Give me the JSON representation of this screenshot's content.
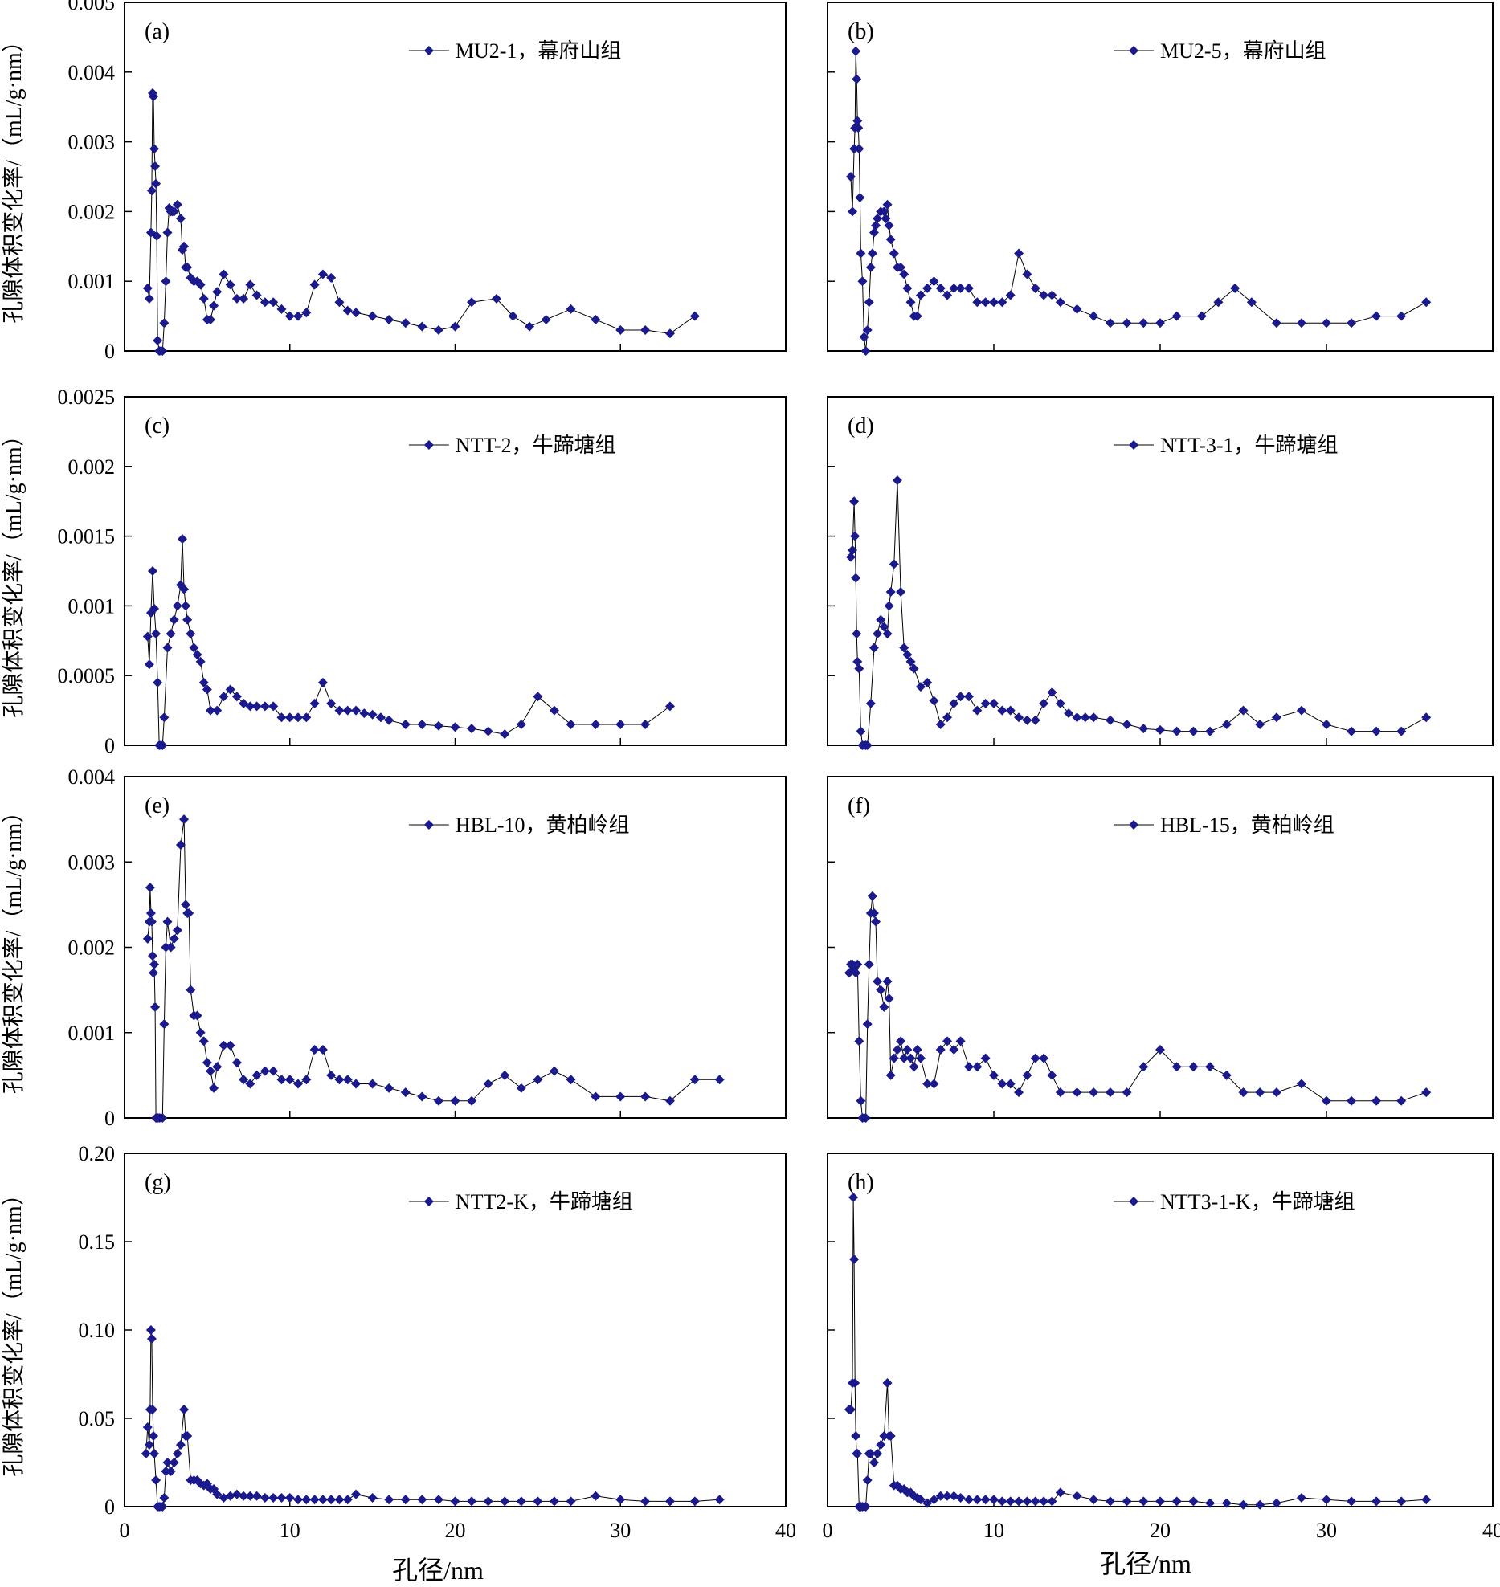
{
  "figure": {
    "xlabel": "孔径/nm",
    "ylabel": "孔隙体积变化率/（mL/g·nm）",
    "x_ticks": [
      "0",
      "10",
      "20",
      "30",
      "40"
    ],
    "marker_color": "#1a1a8c"
  },
  "chart_data": [
    {
      "type": "line",
      "id": "a",
      "panel_label": "(a)",
      "legend": "MU2-1，幕府山组",
      "ylim": [
        0,
        0.005
      ],
      "y_ticks": [
        "0",
        "0.001",
        "0.002",
        "0.003",
        "0.004",
        "0.005"
      ],
      "show_y_tick_labels": true,
      "x": [
        1.4,
        1.5,
        1.6,
        1.65,
        1.7,
        1.75,
        1.8,
        1.85,
        1.9,
        1.95,
        2.0,
        2.1,
        2.2,
        2.3,
        2.4,
        2.5,
        2.6,
        2.7,
        2.8,
        2.9,
        3.0,
        3.2,
        3.4,
        3.5,
        3.6,
        3.7,
        3.8,
        4.0,
        4.2,
        4.4,
        4.6,
        4.8,
        5.0,
        5.2,
        5.4,
        5.6,
        6.0,
        6.4,
        6.8,
        7.2,
        7.6,
        8.0,
        8.5,
        9.0,
        9.5,
        10.0,
        10.5,
        11.0,
        11.5,
        12.0,
        12.5,
        13.0,
        13.5,
        14.0,
        15.0,
        16.0,
        17.0,
        18.0,
        19.0,
        20.0,
        21.0,
        22.5,
        23.5,
        24.5,
        25.5,
        27.0,
        28.5,
        30.0,
        31.5,
        33.0,
        34.5
      ],
      "y": [
        0.0009,
        0.00075,
        0.0017,
        0.0023,
        0.0037,
        0.00365,
        0.0029,
        0.00265,
        0.0024,
        0.00165,
        0.00015,
        0.0,
        0.0,
        0.0,
        0.0004,
        0.001,
        0.0017,
        0.00205,
        0.002,
        0.002,
        0.002,
        0.0021,
        0.0019,
        0.00145,
        0.0015,
        0.0012,
        0.0012,
        0.00105,
        0.001,
        0.001,
        0.00095,
        0.00075,
        0.00045,
        0.00045,
        0.00065,
        0.00085,
        0.0011,
        0.00095,
        0.00075,
        0.00075,
        0.00095,
        0.0008,
        0.0007,
        0.0007,
        0.0006,
        0.0005,
        0.0005,
        0.00055,
        0.00095,
        0.0011,
        0.00105,
        0.0007,
        0.00058,
        0.00055,
        0.0005,
        0.00045,
        0.0004,
        0.00035,
        0.0003,
        0.00035,
        0.0007,
        0.00075,
        0.0005,
        0.00035,
        0.00045,
        0.0006,
        0.00045,
        0.0003,
        0.0003,
        0.00025,
        0.0005
      ]
    },
    {
      "type": "line",
      "id": "b",
      "panel_label": "(b)",
      "legend": "MU2-5，幕府山组",
      "ylim": [
        0,
        0.005
      ],
      "y_ticks": [
        "",
        "",
        "",
        "",
        "",
        ""
      ],
      "show_y_tick_labels": false,
      "x": [
        1.4,
        1.5,
        1.6,
        1.65,
        1.7,
        1.75,
        1.8,
        1.85,
        1.9,
        1.95,
        2.0,
        2.1,
        2.2,
        2.3,
        2.4,
        2.5,
        2.6,
        2.7,
        2.8,
        2.9,
        3.0,
        3.2,
        3.4,
        3.5,
        3.6,
        3.7,
        3.8,
        4.0,
        4.2,
        4.4,
        4.6,
        4.8,
        5.0,
        5.2,
        5.4,
        5.6,
        6.0,
        6.4,
        6.8,
        7.2,
        7.6,
        8.0,
        8.5,
        9.0,
        9.5,
        10.0,
        10.5,
        11.0,
        11.5,
        12.0,
        12.5,
        13.0,
        13.5,
        14.0,
        15.0,
        16.0,
        17.0,
        18.0,
        19.0,
        20.0,
        21.0,
        22.5,
        23.5,
        24.5,
        25.5,
        27.0,
        28.5,
        30.0,
        31.5,
        33.0,
        34.5,
        36.0
      ],
      "y": [
        0.0025,
        0.002,
        0.0029,
        0.0032,
        0.0043,
        0.0039,
        0.0033,
        0.0032,
        0.0029,
        0.0022,
        0.0014,
        0.001,
        0.0002,
        0.0,
        0.0003,
        0.0007,
        0.0012,
        0.0014,
        0.0017,
        0.0018,
        0.0019,
        0.002,
        0.002,
        0.0019,
        0.0021,
        0.0018,
        0.0016,
        0.0014,
        0.0012,
        0.0012,
        0.0011,
        0.0009,
        0.0007,
        0.0005,
        0.0005,
        0.0008,
        0.0009,
        0.001,
        0.0009,
        0.0008,
        0.0009,
        0.0009,
        0.0009,
        0.0007,
        0.0007,
        0.0007,
        0.0007,
        0.0008,
        0.0014,
        0.0011,
        0.0009,
        0.0008,
        0.0008,
        0.0007,
        0.0006,
        0.0005,
        0.0004,
        0.0004,
        0.0004,
        0.0004,
        0.0005,
        0.0005,
        0.0007,
        0.0009,
        0.0007,
        0.0004,
        0.0004,
        0.0004,
        0.0004,
        0.0005,
        0.0005,
        0.0007
      ]
    },
    {
      "type": "line",
      "id": "c",
      "panel_label": "(c)",
      "legend": "NTT-2，牛蹄塘组",
      "ylim": [
        0,
        0.0025
      ],
      "y_ticks": [
        "0",
        "0.0005",
        "0.001",
        "0.0015",
        "0.002",
        "0.0025"
      ],
      "show_y_tick_labels": true,
      "x": [
        1.4,
        1.5,
        1.6,
        1.7,
        1.8,
        1.9,
        2.0,
        2.1,
        2.2,
        2.3,
        2.4,
        2.6,
        2.8,
        3.0,
        3.2,
        3.4,
        3.5,
        3.6,
        3.7,
        3.8,
        4.0,
        4.2,
        4.4,
        4.6,
        4.8,
        5.0,
        5.2,
        5.6,
        6.0,
        6.4,
        6.8,
        7.2,
        7.6,
        8.0,
        8.5,
        9.0,
        9.5,
        10.0,
        10.5,
        11.0,
        11.5,
        12.0,
        12.5,
        13.0,
        13.5,
        14.0,
        14.5,
        15.0,
        15.5,
        16.0,
        17.0,
        18.0,
        19.0,
        20.0,
        21.0,
        22.0,
        23.0,
        24.0,
        25.0,
        26.0,
        27.0,
        28.5,
        30.0,
        31.5,
        33.0
      ],
      "y": [
        0.00078,
        0.00058,
        0.00095,
        0.00125,
        0.00098,
        0.0008,
        0.00045,
        0.0,
        0.0,
        0.0,
        0.0002,
        0.0007,
        0.0008,
        0.0009,
        0.001,
        0.00115,
        0.00148,
        0.00112,
        0.001,
        0.0009,
        0.0008,
        0.0007,
        0.00065,
        0.0006,
        0.00045,
        0.0004,
        0.00025,
        0.00025,
        0.00035,
        0.0004,
        0.00035,
        0.0003,
        0.00028,
        0.00028,
        0.00028,
        0.00028,
        0.0002,
        0.0002,
        0.0002,
        0.0002,
        0.0003,
        0.00045,
        0.0003,
        0.00025,
        0.00025,
        0.00025,
        0.00023,
        0.00022,
        0.0002,
        0.00018,
        0.00015,
        0.00015,
        0.00014,
        0.00013,
        0.00012,
        0.0001,
        8e-05,
        0.00015,
        0.00035,
        0.00025,
        0.00015,
        0.00015,
        0.00015,
        0.00015,
        0.00028
      ]
    },
    {
      "type": "line",
      "id": "d",
      "panel_label": "(d)",
      "legend": "NTT-3-1，牛蹄塘组",
      "ylim": [
        0,
        0.0025
      ],
      "y_ticks": [
        "",
        "",
        "",
        "",
        "",
        ""
      ],
      "show_y_tick_labels": false,
      "x": [
        1.4,
        1.5,
        1.6,
        1.65,
        1.7,
        1.75,
        1.8,
        1.9,
        2.0,
        2.1,
        2.2,
        2.3,
        2.4,
        2.6,
        2.8,
        3.0,
        3.2,
        3.4,
        3.6,
        3.7,
        3.8,
        4.0,
        4.2,
        4.4,
        4.6,
        4.8,
        5.0,
        5.2,
        5.6,
        6.0,
        6.4,
        6.8,
        7.2,
        7.6,
        8.0,
        8.5,
        9.0,
        9.5,
        10.0,
        10.5,
        11.0,
        11.5,
        12.0,
        12.5,
        13.0,
        13.5,
        14.0,
        14.5,
        15.0,
        15.5,
        16.0,
        17.0,
        18.0,
        19.0,
        20.0,
        21.0,
        22.0,
        23.0,
        24.0,
        25.0,
        26.0,
        27.0,
        28.5,
        30.0,
        31.5,
        33.0,
        34.5,
        36.0
      ],
      "y": [
        0.00135,
        0.0014,
        0.00175,
        0.0015,
        0.0012,
        0.0008,
        0.0006,
        0.00055,
        0.0001,
        0.0,
        0.0,
        0.0,
        0.0,
        0.0003,
        0.0007,
        0.0008,
        0.0009,
        0.00085,
        0.0008,
        0.001,
        0.0011,
        0.0013,
        0.0019,
        0.0011,
        0.0007,
        0.00065,
        0.0006,
        0.00055,
        0.00042,
        0.00045,
        0.00032,
        0.00015,
        0.0002,
        0.0003,
        0.00035,
        0.00035,
        0.00025,
        0.0003,
        0.0003,
        0.00025,
        0.00025,
        0.0002,
        0.00018,
        0.00018,
        0.0003,
        0.00038,
        0.0003,
        0.00023,
        0.0002,
        0.0002,
        0.0002,
        0.00018,
        0.00015,
        0.00012,
        0.00011,
        0.0001,
        0.0001,
        0.0001,
        0.00015,
        0.00025,
        0.00015,
        0.0002,
        0.00025,
        0.00015,
        0.0001,
        0.0001,
        0.0001,
        0.0002
      ]
    },
    {
      "type": "line",
      "id": "e",
      "panel_label": "(e)",
      "legend": "HBL-10，黄柏岭组",
      "ylim": [
        0,
        0.004
      ],
      "y_ticks": [
        "0",
        "0.001",
        "0.002",
        "0.003",
        "0.004"
      ],
      "show_y_tick_labels": true,
      "x": [
        1.4,
        1.5,
        1.55,
        1.6,
        1.65,
        1.7,
        1.75,
        1.8,
        1.85,
        1.9,
        1.95,
        2.0,
        2.1,
        2.2,
        2.3,
        2.4,
        2.5,
        2.6,
        2.8,
        3.0,
        3.2,
        3.4,
        3.6,
        3.7,
        3.8,
        3.9,
        4.0,
        4.2,
        4.4,
        4.6,
        4.8,
        5.0,
        5.2,
        5.4,
        5.6,
        6.0,
        6.4,
        6.8,
        7.2,
        7.6,
        8.0,
        8.5,
        9.0,
        9.5,
        10.0,
        10.5,
        11.0,
        11.5,
        12.0,
        12.5,
        13.0,
        13.5,
        14.0,
        15.0,
        16.0,
        17.0,
        18.0,
        19.0,
        20.0,
        21.0,
        22.0,
        23.0,
        24.0,
        25.0,
        26.0,
        27.0,
        28.5,
        30.0,
        31.5,
        33.0,
        34.5,
        36.0
      ],
      "y": [
        0.0021,
        0.0023,
        0.0027,
        0.0024,
        0.0023,
        0.0019,
        0.0017,
        0.0018,
        0.0013,
        0.0,
        0.0,
        0.0,
        0.0,
        0.0,
        0.0,
        0.0011,
        0.002,
        0.0023,
        0.002,
        0.0021,
        0.0022,
        0.0032,
        0.0035,
        0.0025,
        0.0024,
        0.0024,
        0.0015,
        0.0012,
        0.0012,
        0.001,
        0.0009,
        0.00065,
        0.00055,
        0.00035,
        0.0006,
        0.00085,
        0.00085,
        0.00065,
        0.00045,
        0.0004,
        0.0005,
        0.00055,
        0.00055,
        0.00045,
        0.00045,
        0.0004,
        0.00045,
        0.0008,
        0.0008,
        0.0005,
        0.00045,
        0.00045,
        0.0004,
        0.0004,
        0.00035,
        0.0003,
        0.00025,
        0.0002,
        0.0002,
        0.0002,
        0.0004,
        0.0005,
        0.00035,
        0.00045,
        0.00055,
        0.00045,
        0.00025,
        0.00025,
        0.00025,
        0.0002,
        0.00045,
        0.00045
      ]
    },
    {
      "type": "line",
      "id": "f",
      "panel_label": "(f)",
      "legend": "HBL-15，黄柏岭组",
      "ylim": [
        0,
        0.004
      ],
      "y_ticks": [
        "",
        "",
        "",
        "",
        ""
      ],
      "show_y_tick_labels": false,
      "x": [
        1.3,
        1.4,
        1.5,
        1.6,
        1.7,
        1.8,
        1.9,
        2.0,
        2.1,
        2.2,
        2.3,
        2.4,
        2.5,
        2.6,
        2.7,
        2.8,
        2.9,
        3.0,
        3.2,
        3.4,
        3.6,
        3.7,
        3.8,
        4.0,
        4.2,
        4.4,
        4.6,
        4.8,
        5.0,
        5.2,
        5.4,
        5.6,
        6.0,
        6.4,
        6.8,
        7.2,
        7.6,
        8.0,
        8.5,
        9.0,
        9.5,
        10.0,
        10.5,
        11.0,
        11.5,
        12.0,
        12.5,
        13.0,
        13.5,
        14.0,
        15.0,
        16.0,
        17.0,
        18.0,
        19.0,
        20.0,
        21.0,
        22.0,
        23.0,
        24.0,
        25.0,
        26.0,
        27.0,
        28.5,
        30.0,
        31.5,
        33.0,
        34.5,
        36.0
      ],
      "y": [
        0.0017,
        0.0018,
        0.0018,
        0.00175,
        0.0017,
        0.0018,
        0.0009,
        0.0002,
        0.0,
        0.0,
        0.0,
        0.0011,
        0.0018,
        0.0024,
        0.0026,
        0.0024,
        0.0023,
        0.0016,
        0.0015,
        0.0013,
        0.0016,
        0.0014,
        0.0005,
        0.0007,
        0.0008,
        0.0009,
        0.0007,
        0.0008,
        0.0007,
        0.0006,
        0.0008,
        0.0007,
        0.0004,
        0.0004,
        0.0008,
        0.0009,
        0.0008,
        0.0009,
        0.0006,
        0.0006,
        0.0007,
        0.0005,
        0.0004,
        0.0004,
        0.0003,
        0.0005,
        0.0007,
        0.0007,
        0.0005,
        0.0003,
        0.0003,
        0.0003,
        0.0003,
        0.0003,
        0.0006,
        0.0008,
        0.0006,
        0.0006,
        0.0006,
        0.0005,
        0.0003,
        0.0003,
        0.0003,
        0.0004,
        0.0002,
        0.0002,
        0.0002,
        0.0002,
        0.0003
      ]
    },
    {
      "type": "line",
      "id": "g",
      "panel_label": "(g)",
      "legend": "NTT2-K，牛蹄塘组",
      "ylim": [
        0,
        0.2
      ],
      "y_ticks": [
        "0",
        "0.05",
        "0.10",
        "0.15",
        "0.20"
      ],
      "show_y_tick_labels": true,
      "x": [
        1.3,
        1.4,
        1.5,
        1.55,
        1.6,
        1.65,
        1.7,
        1.75,
        1.8,
        1.9,
        2.0,
        2.1,
        2.2,
        2.3,
        2.4,
        2.5,
        2.6,
        2.8,
        3.0,
        3.2,
        3.4,
        3.6,
        3.7,
        3.8,
        4.0,
        4.2,
        4.4,
        4.6,
        4.8,
        5.0,
        5.2,
        5.4,
        5.6,
        6.0,
        6.4,
        6.8,
        7.2,
        7.6,
        8.0,
        8.5,
        9.0,
        9.5,
        10.0,
        10.5,
        11.0,
        11.5,
        12.0,
        12.5,
        13.0,
        13.5,
        14.0,
        15.0,
        16.0,
        17.0,
        18.0,
        19.0,
        20.0,
        21.0,
        22.0,
        23.0,
        24.0,
        25.0,
        26.0,
        27.0,
        28.5,
        30.0,
        31.5,
        33.0,
        34.5,
        36.0
      ],
      "y": [
        0.03,
        0.045,
        0.035,
        0.055,
        0.1,
        0.095,
        0.055,
        0.04,
        0.03,
        0.015,
        0.0,
        0.0,
        0.0,
        0.0,
        0.005,
        0.02,
        0.025,
        0.02,
        0.025,
        0.03,
        0.035,
        0.055,
        0.04,
        0.04,
        0.015,
        0.015,
        0.015,
        0.013,
        0.012,
        0.013,
        0.01,
        0.01,
        0.007,
        0.005,
        0.006,
        0.007,
        0.006,
        0.006,
        0.006,
        0.005,
        0.005,
        0.005,
        0.005,
        0.004,
        0.004,
        0.004,
        0.004,
        0.004,
        0.004,
        0.004,
        0.007,
        0.005,
        0.004,
        0.004,
        0.004,
        0.004,
        0.003,
        0.003,
        0.003,
        0.003,
        0.003,
        0.003,
        0.003,
        0.003,
        0.006,
        0.004,
        0.003,
        0.003,
        0.003,
        0.004
      ]
    },
    {
      "type": "line",
      "id": "h",
      "panel_label": "(h)",
      "legend": "NTT3-1-K，牛蹄塘组",
      "ylim": [
        0,
        0.2
      ],
      "y_ticks": [
        "",
        "",
        "",
        "",
        ""
      ],
      "show_y_tick_labels": false,
      "x": [
        1.3,
        1.4,
        1.5,
        1.55,
        1.6,
        1.65,
        1.7,
        1.75,
        1.8,
        1.9,
        2.0,
        2.1,
        2.2,
        2.3,
        2.4,
        2.5,
        2.6,
        2.8,
        3.0,
        3.2,
        3.4,
        3.6,
        3.7,
        3.8,
        4.0,
        4.2,
        4.4,
        4.6,
        4.8,
        5.0,
        5.2,
        5.4,
        5.6,
        6.0,
        6.4,
        6.8,
        7.2,
        7.6,
        8.0,
        8.5,
        9.0,
        9.5,
        10.0,
        10.5,
        11.0,
        11.5,
        12.0,
        12.5,
        13.0,
        13.5,
        14.0,
        15.0,
        16.0,
        17.0,
        18.0,
        19.0,
        20.0,
        21.0,
        22.0,
        23.0,
        24.0,
        25.0,
        26.0,
        27.0,
        28.5,
        30.0,
        31.5,
        33.0,
        34.5,
        36.0
      ],
      "y": [
        0.055,
        0.055,
        0.07,
        0.175,
        0.14,
        0.07,
        0.04,
        0.03,
        0.03,
        0.0,
        0.0,
        0.0,
        0.0,
        0.0,
        0.015,
        0.03,
        0.03,
        0.025,
        0.03,
        0.035,
        0.04,
        0.07,
        0.04,
        0.04,
        0.012,
        0.012,
        0.01,
        0.01,
        0.008,
        0.008,
        0.006,
        0.005,
        0.004,
        0.002,
        0.004,
        0.006,
        0.006,
        0.006,
        0.005,
        0.004,
        0.004,
        0.004,
        0.004,
        0.003,
        0.003,
        0.003,
        0.003,
        0.003,
        0.003,
        0.003,
        0.008,
        0.006,
        0.004,
        0.003,
        0.003,
        0.003,
        0.003,
        0.003,
        0.003,
        0.002,
        0.002,
        0.001,
        0.001,
        0.002,
        0.005,
        0.004,
        0.003,
        0.003,
        0.003,
        0.004
      ]
    }
  ]
}
